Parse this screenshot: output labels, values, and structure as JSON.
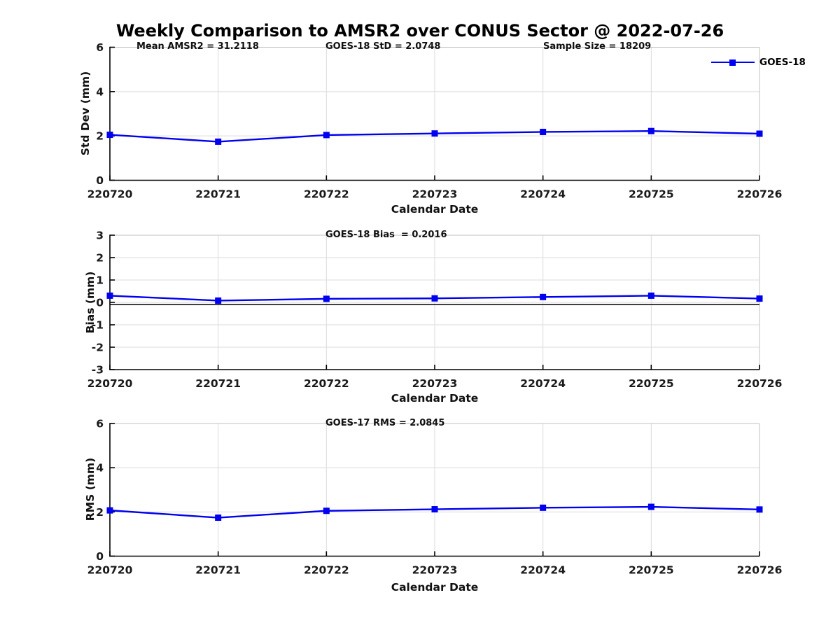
{
  "title": "Weekly Comparison to AMSR2 over CONUS Sector @ 2022-07-26",
  "legend": {
    "label": "GOES-18"
  },
  "colors": {
    "line": "#0000F0",
    "grid": "#dbdbdb",
    "border": "#c2c2c2",
    "axis": "#000000",
    "text": "#1a1a1a"
  },
  "chart_data": [
    {
      "type": "line",
      "categories": [
        "220720",
        "220721",
        "220722",
        "220723",
        "220724",
        "220725",
        "220726"
      ],
      "series": [
        {
          "name": "GOES-18",
          "values": [
            2.05,
            1.74,
            2.04,
            2.11,
            2.18,
            2.22,
            2.1
          ]
        }
      ],
      "xlabel": "Calendar Date",
      "ylabel": "Std Dev (mm)",
      "ylim": [
        0,
        6
      ],
      "yticks": [
        0,
        2,
        4,
        6
      ],
      "grid": true,
      "legend_position": "top-right-outside",
      "annotations": [
        "Mean AMSR2 = 31.2118",
        "GOES-18 StD = 2.0748",
        "Sample Size = 18209"
      ]
    },
    {
      "type": "line",
      "categories": [
        "220720",
        "220721",
        "220722",
        "220723",
        "220724",
        "220725",
        "220726"
      ],
      "series": [
        {
          "name": "GOES-18",
          "values": [
            0.3,
            0.08,
            0.16,
            0.18,
            0.24,
            0.3,
            0.17
          ]
        }
      ],
      "xlabel": "Calendar Date",
      "ylabel": "Bias (mm)",
      "ylim": [
        -3,
        3
      ],
      "yticks": [
        -3,
        -2,
        -1,
        0,
        1,
        2,
        3
      ],
      "grid": true,
      "zero_line": true,
      "annotations": [
        "GOES-18 Bias  = 0.2016"
      ]
    },
    {
      "type": "line",
      "categories": [
        "220720",
        "220721",
        "220722",
        "220723",
        "220724",
        "220725",
        "220726"
      ],
      "series": [
        {
          "name": "GOES-18",
          "values": [
            2.07,
            1.74,
            2.05,
            2.12,
            2.19,
            2.23,
            2.11
          ]
        }
      ],
      "xlabel": "Calendar Date",
      "ylabel": "RMS (mm)",
      "ylim": [
        0,
        6
      ],
      "yticks": [
        0,
        2,
        4,
        6
      ],
      "grid": true,
      "annotations": [
        "GOES-17 RMS = 2.0845"
      ]
    }
  ]
}
